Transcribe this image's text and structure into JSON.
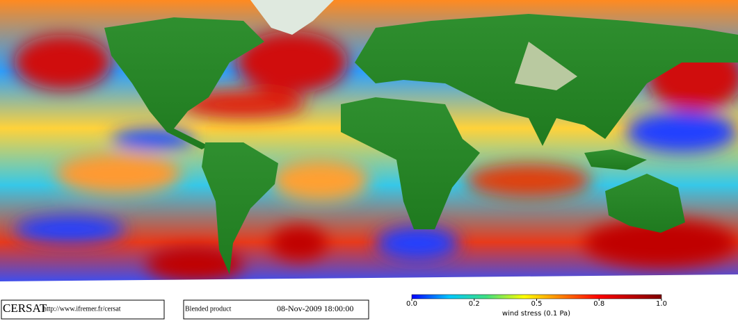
{
  "header": {
    "logo": "CERSAT",
    "url": "http://www.ifremer.fr/cersat",
    "product": "Blended product",
    "timestamp": "08-Nov-2009 18:00:00"
  },
  "legend": {
    "label": "wind stress (0.1 Pa)",
    "ticks": [
      {
        "value": 0,
        "label": "0.0"
      },
      {
        "value": 0.2,
        "label": "0.2"
      },
      {
        "value": 0.5,
        "label": "0.5"
      },
      {
        "value": 0.8,
        "label": "0.8"
      },
      {
        "value": 1,
        "label": "1.0"
      }
    ]
  }
}
